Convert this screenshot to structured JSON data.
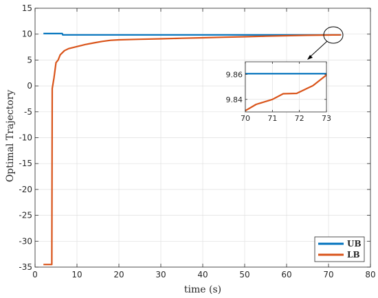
{
  "chart_data": {
    "type": "line",
    "title": "",
    "xlabel": "time (s)",
    "ylabel": "Optimal Trajectory",
    "xlim": [
      0,
      80
    ],
    "ylim": [
      -35,
      15
    ],
    "xticks": [
      0,
      10,
      20,
      30,
      40,
      50,
      60,
      70,
      80
    ],
    "yticks": [
      -35,
      -30,
      -25,
      -20,
      -15,
      -10,
      -5,
      0,
      5,
      10,
      15
    ],
    "grid": true,
    "legend_position": "bottom-right",
    "series": [
      {
        "name": "UB",
        "color": "#0072BD",
        "x": [
          2,
          6.5,
          6.6,
          73
        ],
        "y": [
          10.1,
          10.1,
          9.86,
          9.86
        ]
      },
      {
        "name": "LB",
        "color": "#D95319",
        "x": [
          2,
          4.0,
          4.1,
          4.5,
          5,
          5.5,
          6,
          6.5,
          7,
          8,
          9,
          10,
          11,
          12,
          14,
          16,
          18,
          20,
          25,
          30,
          35,
          40,
          45,
          50,
          55,
          60,
          65,
          70,
          71,
          71.5,
          72,
          72.5,
          73
        ],
        "y": [
          -34.5,
          -34.5,
          -0.5,
          1.5,
          4.5,
          5.0,
          6.0,
          6.4,
          6.8,
          7.2,
          7.4,
          7.6,
          7.8,
          8.0,
          8.3,
          8.6,
          8.8,
          8.9,
          9.0,
          9.1,
          9.2,
          9.3,
          9.4,
          9.5,
          9.6,
          9.7,
          9.77,
          9.83,
          9.838,
          9.845,
          9.845,
          9.852,
          9.86
        ]
      }
    ],
    "inset": {
      "xlim": [
        70,
        73
      ],
      "ylim": [
        9.83,
        9.87
      ],
      "xticks": [
        70,
        71,
        72,
        73
      ],
      "yticks": [
        9.84,
        9.86
      ],
      "series": [
        {
          "name": "UB",
          "color": "#0072BD",
          "x": [
            70,
            73
          ],
          "y": [
            9.8605,
            9.8605
          ]
        },
        {
          "name": "LB",
          "color": "#D95319",
          "x": [
            70,
            70.4,
            71.0,
            71.4,
            71.9,
            72.5,
            73.0
          ],
          "y": [
            9.831,
            9.836,
            9.84,
            9.8445,
            9.8448,
            9.851,
            9.8595
          ]
        }
      ]
    }
  }
}
